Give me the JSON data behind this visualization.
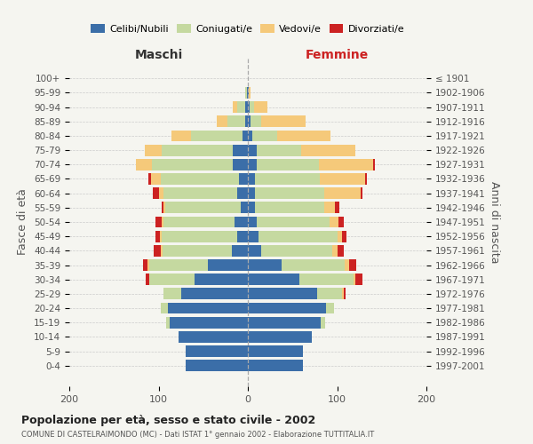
{
  "age_groups": [
    "100+",
    "95-99",
    "90-94",
    "85-89",
    "80-84",
    "75-79",
    "70-74",
    "65-69",
    "60-64",
    "55-59",
    "50-54",
    "45-49",
    "40-44",
    "35-39",
    "30-34",
    "25-29",
    "20-24",
    "15-19",
    "10-14",
    "5-9",
    "0-4"
  ],
  "birth_years": [
    "≤ 1901",
    "1902-1906",
    "1907-1911",
    "1912-1916",
    "1917-1921",
    "1922-1926",
    "1927-1931",
    "1932-1936",
    "1937-1941",
    "1942-1946",
    "1947-1951",
    "1952-1956",
    "1957-1961",
    "1962-1966",
    "1967-1971",
    "1972-1976",
    "1977-1981",
    "1982-1986",
    "1987-1991",
    "1992-1996",
    "1997-2001"
  ],
  "males_celibe": [
    0,
    1,
    3,
    3,
    6,
    17,
    17,
    10,
    12,
    8,
    15,
    12,
    18,
    45,
    60,
    75,
    90,
    88,
    78,
    70,
    70
  ],
  "males_coniugato": [
    0,
    2,
    9,
    20,
    58,
    80,
    90,
    88,
    83,
    85,
    80,
    85,
    78,
    65,
    50,
    20,
    8,
    4,
    0,
    0,
    0
  ],
  "males_vedovo": [
    0,
    0,
    5,
    12,
    22,
    18,
    18,
    10,
    5,
    2,
    2,
    2,
    2,
    2,
    0,
    0,
    0,
    0,
    0,
    0,
    0
  ],
  "males_divorziato": [
    0,
    0,
    0,
    0,
    0,
    0,
    0,
    3,
    6,
    2,
    6,
    4,
    7,
    5,
    4,
    0,
    0,
    0,
    0,
    0,
    0
  ],
  "females_nubile": [
    0,
    1,
    2,
    3,
    5,
    10,
    10,
    8,
    8,
    8,
    10,
    12,
    15,
    38,
    58,
    78,
    88,
    82,
    72,
    62,
    62
  ],
  "females_coniugata": [
    0,
    0,
    5,
    12,
    28,
    50,
    70,
    73,
    78,
    78,
    82,
    88,
    80,
    70,
    60,
    27,
    9,
    5,
    0,
    0,
    0
  ],
  "females_vedova": [
    0,
    2,
    15,
    50,
    60,
    60,
    60,
    50,
    40,
    12,
    9,
    5,
    5,
    5,
    2,
    2,
    0,
    0,
    0,
    0,
    0
  ],
  "females_divorziata": [
    0,
    0,
    0,
    0,
    0,
    0,
    2,
    2,
    2,
    4,
    6,
    5,
    7,
    8,
    8,
    2,
    0,
    0,
    0,
    0,
    0
  ],
  "color_celibe": "#3b6ea8",
  "color_coniugato": "#c5d9a0",
  "color_vedovo": "#f5c97a",
  "color_divorziato": "#cc2222",
  "legend_labels": [
    "Celibi/Nubili",
    "Coniugati/e",
    "Vedovi/e",
    "Divorziati/e"
  ],
  "title": "Popolazione per età, sesso e stato civile - 2002",
  "subtitle": "COMUNE DI CASTELRAIMONDO (MC) - Dati ISTAT 1° gennaio 2002 - Elaborazione TUTTITALIA.IT",
  "label_maschi": "Maschi",
  "label_femmine": "Femmine",
  "ylabel_left": "Fasce di età",
  "ylabel_right": "Anni di nascita",
  "xlim": 200,
  "bg_color": "#f5f5f0",
  "bar_height": 0.8
}
